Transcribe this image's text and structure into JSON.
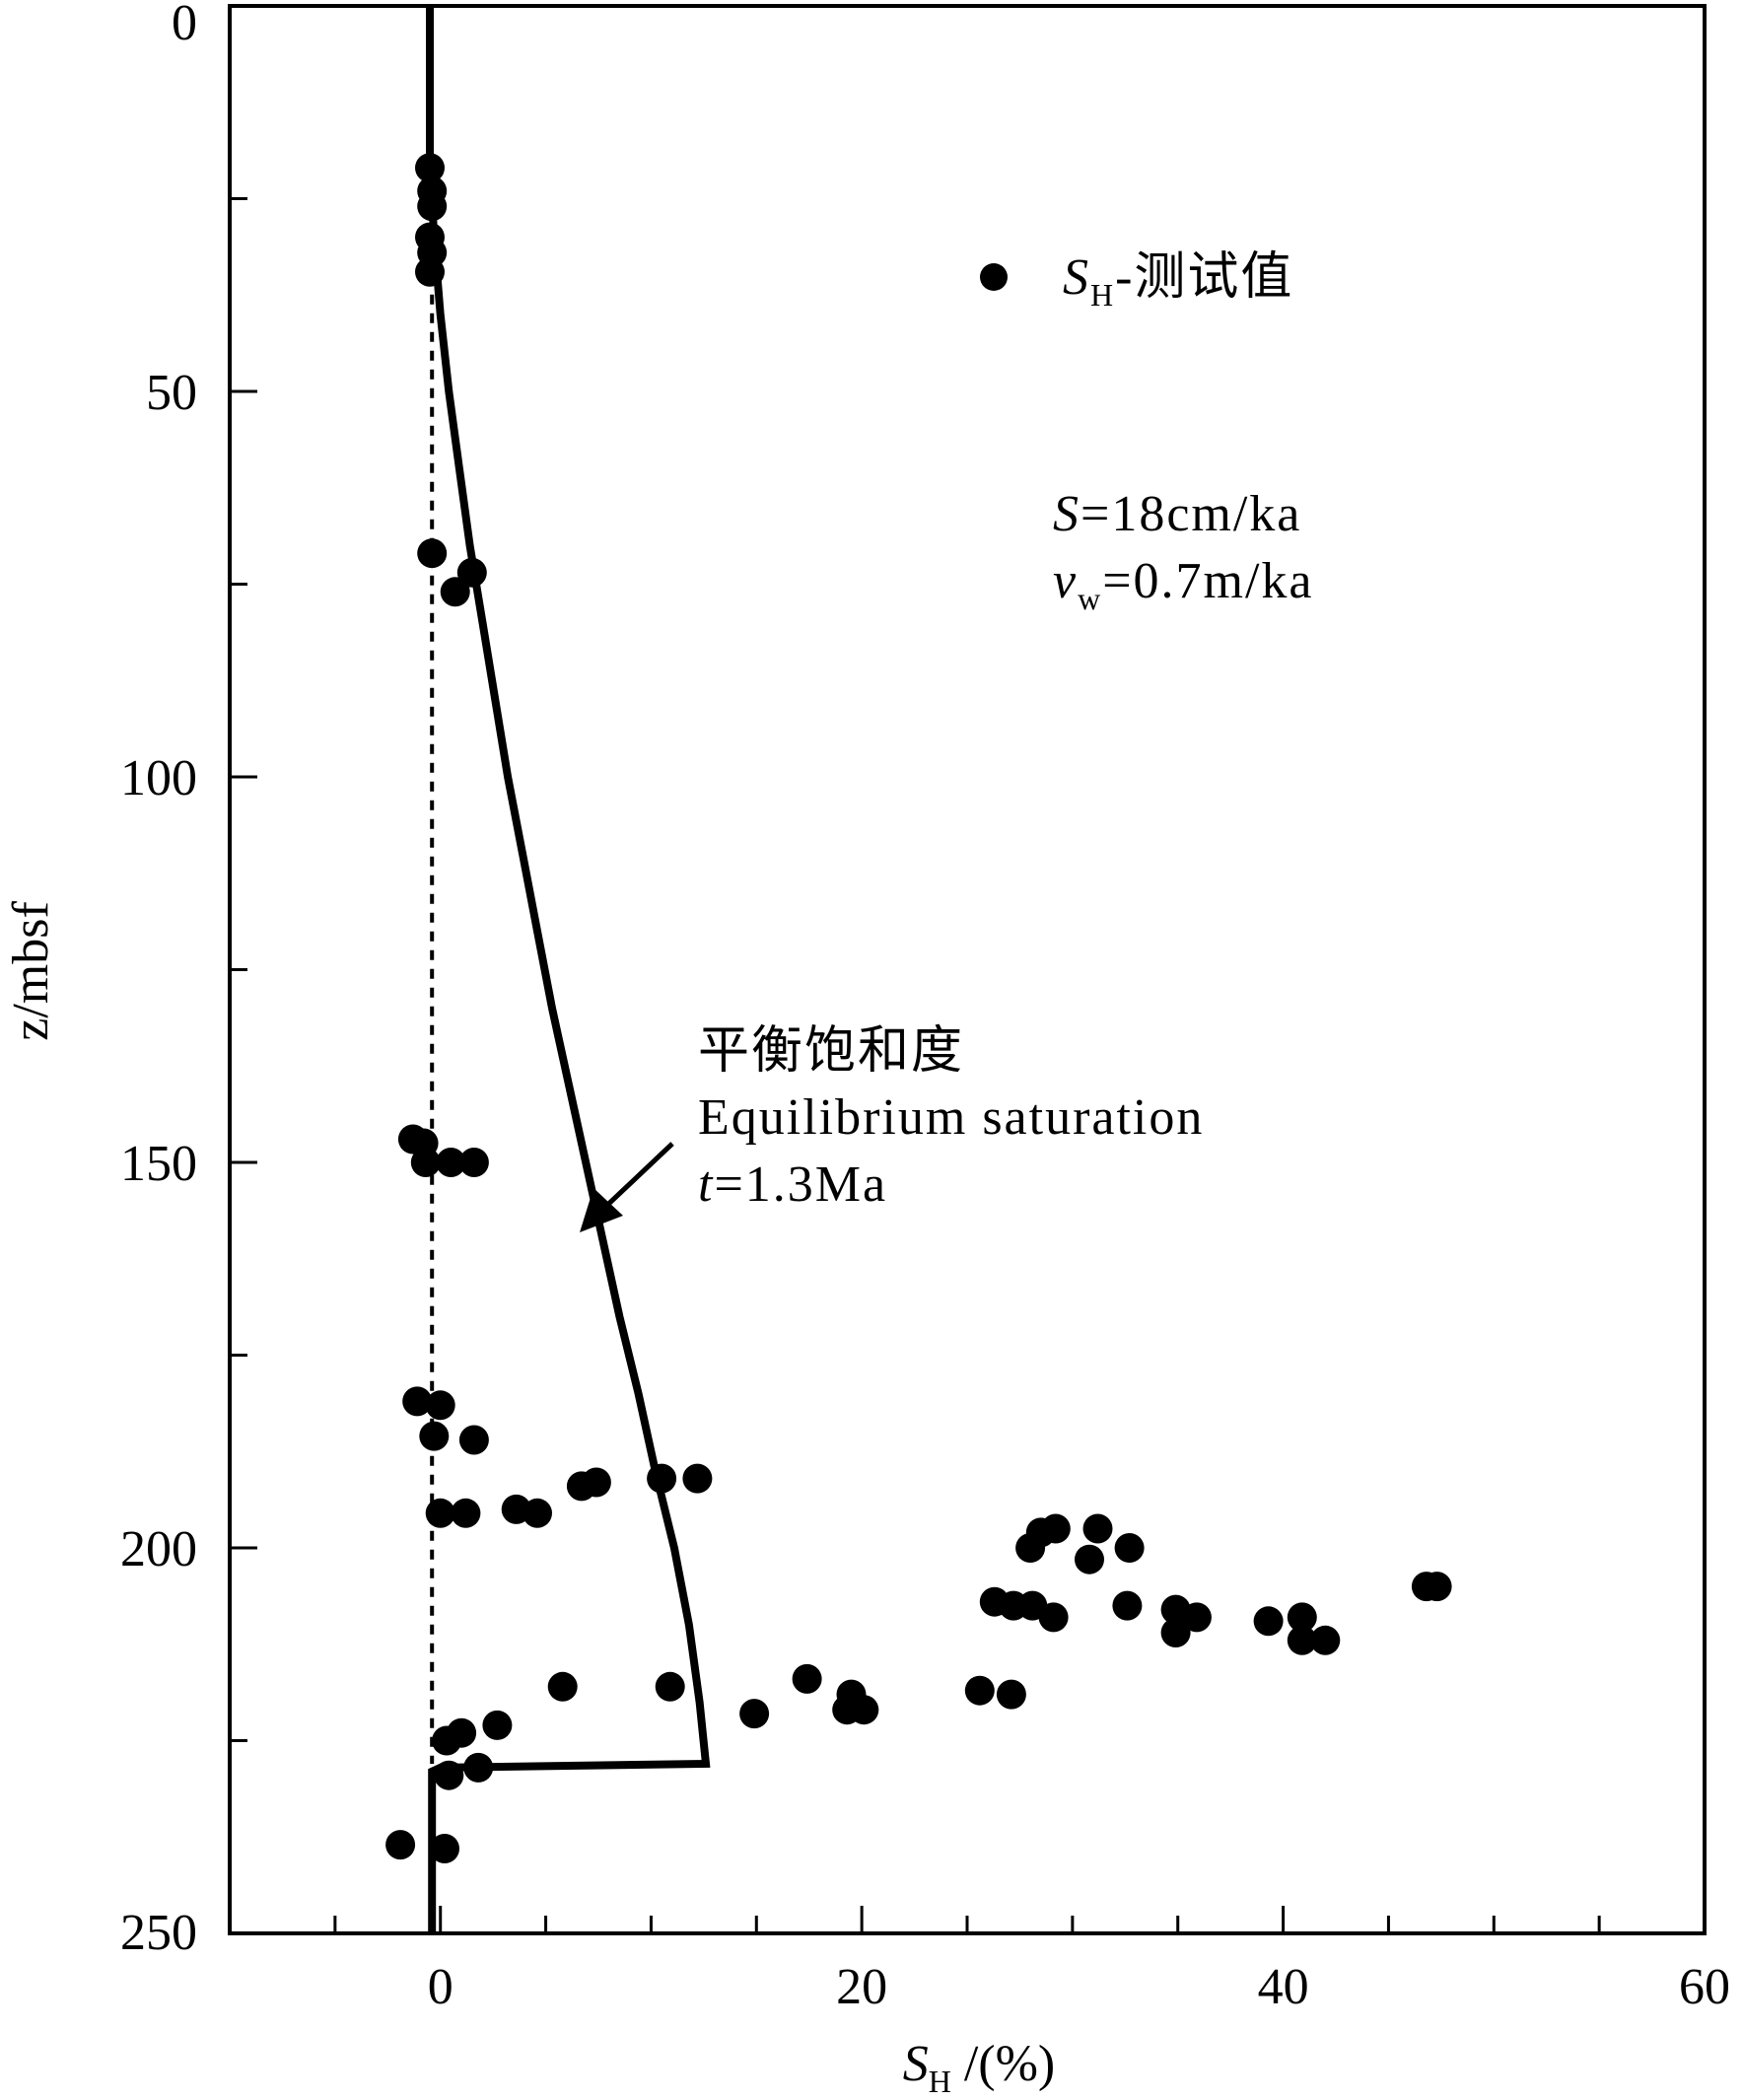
{
  "chart_data": {
    "type": "scatter",
    "title": "",
    "xlabel": {
      "symbol": "S",
      "subscript": "H",
      "unit": " /(%)"
    },
    "ylabel": "z/mbsf",
    "xlim": [
      -10,
      60
    ],
    "ylim": [
      0,
      250
    ],
    "y_inverted": true,
    "x_major_ticks": [
      0,
      20,
      40,
      60
    ],
    "x_tick_labels": [
      "0",
      "20",
      "40",
      "60"
    ],
    "x_minor_ticks": [
      -10,
      -5,
      5,
      10,
      15,
      25,
      30,
      35,
      45,
      50,
      55
    ],
    "y_major_ticks": [
      0,
      50,
      100,
      150,
      200,
      250
    ],
    "y_tick_labels": [
      "0",
      "50",
      "100",
      "150",
      "200",
      "250"
    ],
    "y_minor_ticks": [
      25,
      75,
      125,
      175,
      225
    ],
    "grid": false,
    "legend": {
      "position": "top-right",
      "symbol": "S",
      "subscript": "H",
      "text": "-测试值"
    },
    "params": {
      "line1": {
        "symbol": "S",
        "subscript": "",
        "text": "=18cm/ka"
      },
      "line2": {
        "symbol": "v",
        "subscript": "w",
        "text": "=0.7m/ka"
      }
    },
    "annotation": {
      "line1": "平衡饱和度",
      "line2": "Equilibrium saturation",
      "line3_symbol": "t",
      "line3_text": "=1.3Ma"
    },
    "series": [
      {
        "name": "SH-测试值",
        "kind": "scatter",
        "points": [
          [
            -0.5,
            21
          ],
          [
            -0.4,
            24
          ],
          [
            -0.4,
            26
          ],
          [
            -0.5,
            30
          ],
          [
            -0.4,
            32
          ],
          [
            -0.5,
            34.5
          ],
          [
            -0.4,
            71
          ],
          [
            1.5,
            73.5
          ],
          [
            0.7,
            76
          ],
          [
            -1.3,
            147
          ],
          [
            -0.8,
            147.5
          ],
          [
            -0.7,
            150
          ],
          [
            0.5,
            150
          ],
          [
            1.6,
            150
          ],
          [
            -1.1,
            181
          ],
          [
            0,
            181.5
          ],
          [
            -0.3,
            185.5
          ],
          [
            1.6,
            186
          ],
          [
            6.7,
            192
          ],
          [
            7.4,
            191.5
          ],
          [
            10.5,
            191
          ],
          [
            12.2,
            191
          ],
          [
            0,
            195.5
          ],
          [
            1.2,
            195.5
          ],
          [
            3.6,
            195
          ],
          [
            4.6,
            195.5
          ],
          [
            28,
            200
          ],
          [
            28.5,
            198
          ],
          [
            29.2,
            197.5
          ],
          [
            31.2,
            197.5
          ],
          [
            32.7,
            200
          ],
          [
            30.8,
            201.5
          ],
          [
            26.3,
            207
          ],
          [
            27.2,
            207.5
          ],
          [
            28.1,
            207.5
          ],
          [
            29.1,
            209
          ],
          [
            32.6,
            207.5
          ],
          [
            34.9,
            208
          ],
          [
            35.9,
            209
          ],
          [
            34.9,
            211
          ],
          [
            39.3,
            209.5
          ],
          [
            40.9,
            209
          ],
          [
            40.9,
            212
          ],
          [
            42,
            212
          ],
          [
            46.8,
            205
          ],
          [
            47.3,
            205
          ],
          [
            5.8,
            218
          ],
          [
            10.9,
            218
          ],
          [
            17.4,
            217
          ],
          [
            19.5,
            219
          ],
          [
            19.3,
            221
          ],
          [
            20.1,
            221
          ],
          [
            25.6,
            218.5
          ],
          [
            27.1,
            219
          ],
          [
            14.9,
            221.5
          ],
          [
            0.3,
            225
          ],
          [
            1,
            224
          ],
          [
            2.7,
            223
          ],
          [
            0.4,
            229.5
          ],
          [
            1.8,
            228.5
          ],
          [
            -1.9,
            238.5
          ],
          [
            0.2,
            239
          ]
        ]
      },
      {
        "name": "平衡饱和度 Equilibrium saturation t=1.3Ma",
        "kind": "line",
        "points": [
          [
            -0.5,
            0
          ],
          [
            -0.5,
            20
          ],
          [
            -0.3,
            30
          ],
          [
            0,
            40
          ],
          [
            0.4,
            50
          ],
          [
            0.9,
            60
          ],
          [
            1.4,
            70
          ],
          [
            2,
            80
          ],
          [
            2.6,
            90
          ],
          [
            3.2,
            100
          ],
          [
            3.9,
            110
          ],
          [
            4.6,
            120
          ],
          [
            5.3,
            130
          ],
          [
            6.1,
            140
          ],
          [
            6.9,
            150
          ],
          [
            7.7,
            160
          ],
          [
            8.5,
            170
          ],
          [
            9.4,
            180
          ],
          [
            10.2,
            190
          ],
          [
            11.1,
            200
          ],
          [
            11.8,
            210
          ],
          [
            12.3,
            220
          ],
          [
            12.6,
            228
          ],
          [
            0,
            228.5
          ],
          [
            -0.4,
            229
          ],
          [
            -0.4,
            250
          ]
        ]
      },
      {
        "name": "dashed reference",
        "kind": "dashed",
        "points": [
          [
            -0.4,
            35
          ],
          [
            -0.4,
            228
          ]
        ]
      }
    ]
  }
}
